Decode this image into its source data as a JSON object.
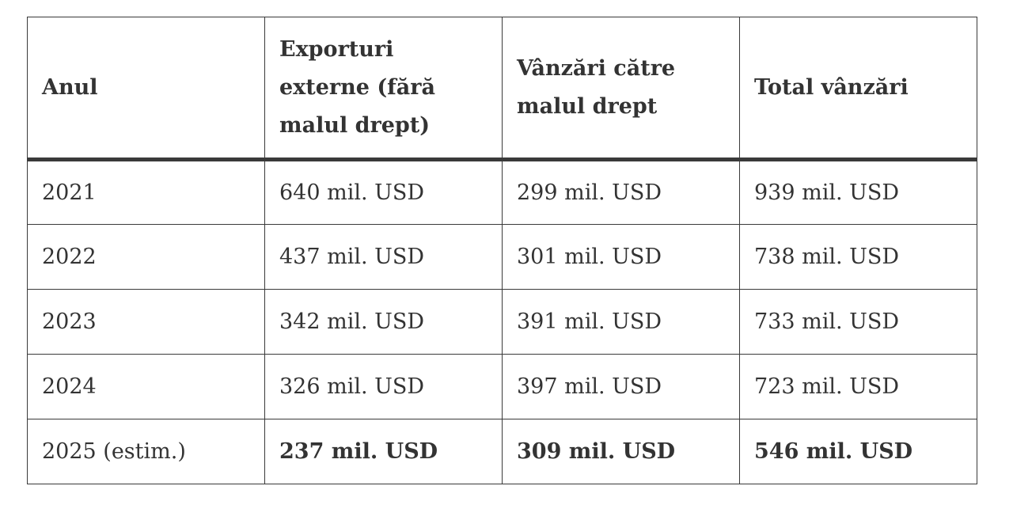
{
  "table": {
    "headers": [
      "Anul",
      "Exporturi externe (fără malul drept)",
      "Vânzări către malul drept",
      "Total vânzări"
    ],
    "rows": [
      [
        "2021",
        "640 mil. USD",
        "299 mil. USD",
        "939 mil. USD"
      ],
      [
        "2022",
        "437 mil. USD",
        "301 mil. USD",
        "738 mil. USD"
      ],
      [
        "2023",
        "342 mil. USD",
        "391 mil. USD",
        "733 mil. USD"
      ],
      [
        "2024",
        "326 mil. USD",
        "397 mil. USD",
        "723 mil. USD"
      ],
      [
        "2025 (estim.)",
        "237 mil. USD",
        "309 mil. USD",
        "546 mil. USD"
      ]
    ],
    "bold_row": 4
  }
}
